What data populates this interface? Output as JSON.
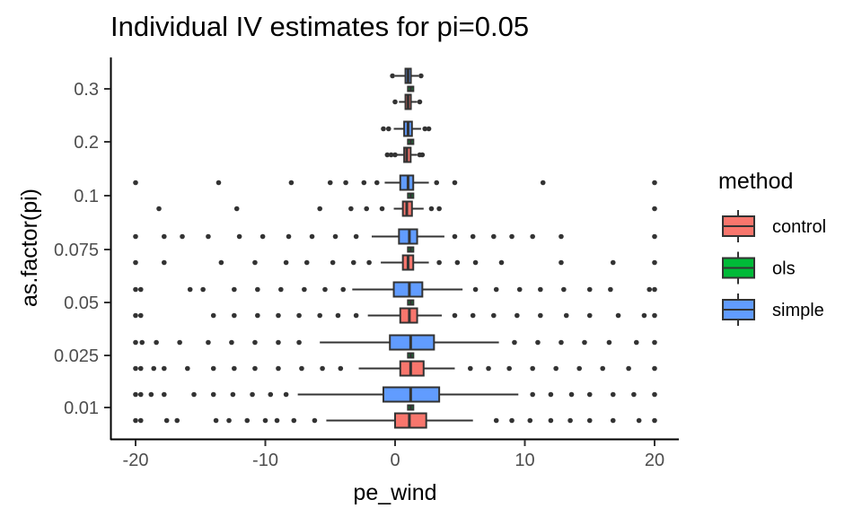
{
  "chart_data": {
    "type": "boxplot",
    "title": "Individual IV estimates for pi=0.05",
    "xlabel": "pe_wind",
    "ylabel": "as.factor(pi)",
    "xlim": [
      -22,
      22
    ],
    "x_ticks": [
      -20,
      -10,
      0,
      10,
      20
    ],
    "categories": [
      "0.01",
      "0.025",
      "0.05",
      "0.075",
      "0.1",
      "0.2",
      "0.3"
    ],
    "legend": {
      "title": "method",
      "position": "right",
      "entries": [
        {
          "name": "control",
          "color": "#F8766D"
        },
        {
          "name": "ols",
          "color": "#00BA38"
        },
        {
          "name": "simple",
          "color": "#619CFF"
        }
      ]
    },
    "boxes": [
      {
        "category": "0.01",
        "method": "control",
        "q1": 0.0,
        "median": 1.1,
        "q3": 2.4,
        "lower": -5.3,
        "upper": 6.0,
        "outliers": [
          -20,
          -19.6,
          -17.6,
          -16.8,
          -13.8,
          -12.8,
          -11.4,
          -10.0,
          -9.1,
          -7.8,
          -6.2,
          7.8,
          9.0,
          10.4,
          12.0,
          13.5,
          15.0,
          16.8,
          18.8,
          20
        ]
      },
      {
        "category": "0.01",
        "method": "ols",
        "q1": 1.1,
        "median": 1.2,
        "q3": 1.3,
        "lower": 1.0,
        "upper": 1.4,
        "outliers": []
      },
      {
        "category": "0.01",
        "method": "simple",
        "q1": -0.9,
        "median": 1.2,
        "q3": 3.4,
        "lower": -7.5,
        "upper": 9.5,
        "outliers": [
          -20,
          -19.6,
          -18.8,
          -17.8,
          -15.5,
          -14.0,
          -12.5,
          -11.0,
          -9.6,
          -8.4,
          10.6,
          12.0,
          13.6,
          15.0,
          16.8,
          18.4,
          20
        ]
      },
      {
        "category": "0.025",
        "method": "control",
        "q1": 0.4,
        "median": 1.2,
        "q3": 2.2,
        "lower": -2.8,
        "upper": 4.6,
        "outliers": [
          -20,
          -19.6,
          -18.6,
          -17.8,
          -16.0,
          -14.0,
          -12.4,
          -10.8,
          -9.0,
          -7.2,
          -5.6,
          -4.2,
          5.8,
          7.2,
          8.8,
          10.6,
          12.4,
          14.2,
          16.0,
          18.0,
          20
        ]
      },
      {
        "category": "0.025",
        "method": "ols",
        "q1": 1.1,
        "median": 1.2,
        "q3": 1.3,
        "lower": 1.0,
        "upper": 1.4,
        "outliers": []
      },
      {
        "category": "0.025",
        "method": "simple",
        "q1": -0.4,
        "median": 1.2,
        "q3": 3.0,
        "lower": -5.8,
        "upper": 8.0,
        "outliers": [
          -20,
          -19.5,
          -18.4,
          -16.6,
          -14.4,
          -12.6,
          -10.8,
          -9.0,
          -7.4,
          9.2,
          11.0,
          12.8,
          14.6,
          16.5,
          18.6,
          20
        ]
      },
      {
        "category": "0.05",
        "method": "control",
        "q1": 0.4,
        "median": 1.1,
        "q3": 1.7,
        "lower": -2.1,
        "upper": 3.6,
        "outliers": [
          -20,
          -19.6,
          -14.0,
          -12.4,
          -10.6,
          -9.0,
          -7.4,
          -5.8,
          -4.4,
          -3.0,
          4.6,
          6.0,
          7.6,
          9.4,
          11.2,
          13.2,
          15.0,
          17.2,
          19.2,
          20
        ]
      },
      {
        "category": "0.05",
        "method": "ols",
        "q1": 1.1,
        "median": 1.2,
        "q3": 1.3,
        "lower": 1.0,
        "upper": 1.4,
        "outliers": []
      },
      {
        "category": "0.05",
        "method": "simple",
        "q1": -0.1,
        "median": 1.1,
        "q3": 2.1,
        "lower": -3.3,
        "upper": 5.2,
        "outliers": [
          -20,
          -19.6,
          -15.8,
          -14.8,
          -12.4,
          -10.6,
          -8.8,
          -7.0,
          -5.4,
          -4.0,
          6.2,
          7.8,
          9.6,
          11.2,
          13.0,
          15.0,
          16.6,
          19.6,
          20
        ]
      },
      {
        "category": "0.075",
        "method": "control",
        "q1": 0.6,
        "median": 1.0,
        "q3": 1.4,
        "lower": -1.1,
        "upper": 2.6,
        "outliers": [
          -20,
          -17.8,
          -13.4,
          -10.8,
          -8.4,
          -6.8,
          -4.8,
          -3.2,
          -2.0,
          3.4,
          4.8,
          6.2,
          8.2,
          12.8,
          16.8,
          20
        ]
      },
      {
        "category": "0.075",
        "method": "ols",
        "q1": 1.1,
        "median": 1.2,
        "q3": 1.3,
        "lower": 1.0,
        "upper": 1.4,
        "outliers": []
      },
      {
        "category": "0.075",
        "method": "simple",
        "q1": 0.3,
        "median": 1.1,
        "q3": 1.7,
        "lower": -1.8,
        "upper": 3.8,
        "outliers": [
          -20,
          -17.8,
          -16.4,
          -14.4,
          -12.0,
          -10.2,
          -8.2,
          -6.4,
          -4.6,
          -3.0,
          4.6,
          6.0,
          7.6,
          9.0,
          10.6,
          12.8,
          20
        ]
      },
      {
        "category": "0.1",
        "method": "control",
        "q1": 0.6,
        "median": 0.9,
        "q3": 1.3,
        "lower": -0.1,
        "upper": 2.2,
        "outliers": [
          -18.2,
          -12.2,
          -5.8,
          -3.4,
          -2.2,
          -1.0,
          2.8,
          3.4,
          20
        ]
      },
      {
        "category": "0.1",
        "method": "ols",
        "q1": 1.1,
        "median": 1.2,
        "q3": 1.3,
        "lower": 1.0,
        "upper": 1.4,
        "outliers": []
      },
      {
        "category": "0.1",
        "method": "simple",
        "q1": 0.4,
        "median": 1.0,
        "q3": 1.4,
        "lower": -0.8,
        "upper": 2.6,
        "outliers": [
          -20,
          -13.6,
          -8.0,
          -5.0,
          -3.8,
          -2.4,
          -1.4,
          3.2,
          4.6,
          11.4,
          20
        ]
      },
      {
        "category": "0.2",
        "method": "control",
        "q1": 0.7,
        "median": 0.9,
        "q3": 1.2,
        "lower": 0.1,
        "upper": 1.7,
        "outliers": [
          -0.6,
          -0.3,
          0.0,
          1.9,
          2.1
        ]
      },
      {
        "category": "0.2",
        "method": "ols",
        "q1": 1.1,
        "median": 1.2,
        "q3": 1.3,
        "lower": 1.0,
        "upper": 1.4,
        "outliers": []
      },
      {
        "category": "0.2",
        "method": "simple",
        "q1": 0.7,
        "median": 1.0,
        "q3": 1.3,
        "lower": -0.1,
        "upper": 2.0,
        "outliers": [
          -0.9,
          -0.5,
          2.3,
          2.6
        ]
      },
      {
        "category": "0.3",
        "method": "control",
        "q1": 0.8,
        "median": 1.0,
        "q3": 1.2,
        "lower": 0.3,
        "upper": 1.7,
        "outliers": [
          0.0,
          1.9
        ]
      },
      {
        "category": "0.3",
        "method": "ols",
        "q1": 1.1,
        "median": 1.2,
        "q3": 1.3,
        "lower": 1.0,
        "upper": 1.4,
        "outliers": []
      },
      {
        "category": "0.3",
        "method": "simple",
        "q1": 0.8,
        "median": 1.0,
        "q3": 1.2,
        "lower": 0.0,
        "upper": 1.8,
        "outliers": [
          -0.2,
          2.0
        ]
      }
    ]
  }
}
